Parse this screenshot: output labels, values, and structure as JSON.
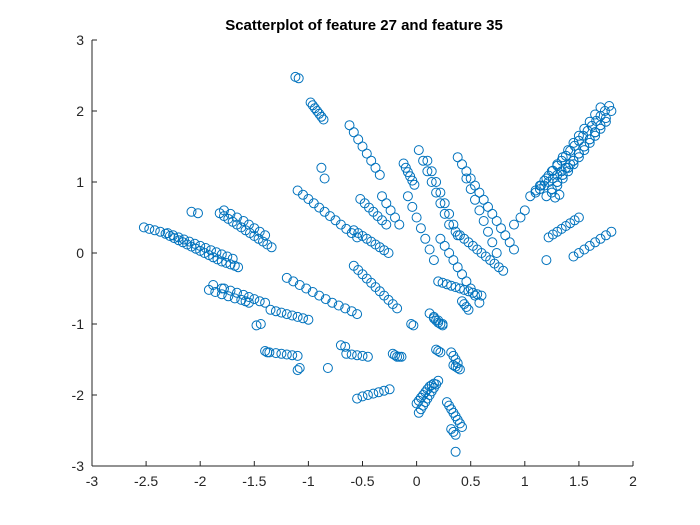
{
  "chart_data": {
    "type": "scatter",
    "title": "Scatterplot of feature 27 and feature 35",
    "xlabel": "",
    "ylabel": "",
    "xlim": [
      -3,
      2
    ],
    "ylim": [
      -3,
      3
    ],
    "xticks": [
      -3,
      -2.5,
      -2,
      -1.5,
      -1,
      -0.5,
      0,
      0.5,
      1,
      1.5,
      2
    ],
    "xtick_labels": [
      "-3",
      "-2.5",
      "-2",
      "-1.5",
      "-1",
      "-0.5",
      "0",
      "0.5",
      "1",
      "1.5",
      "2"
    ],
    "yticks": [
      -3,
      -2,
      -1,
      0,
      1,
      2,
      3
    ],
    "ytick_labels": [
      "-3",
      "-2",
      "-1",
      "0",
      "1",
      "2",
      "3"
    ],
    "grid": false,
    "legend": "none",
    "marker": "open-circle",
    "marker_color": "#0072BD",
    "series": [
      {
        "x": [
          -2.52,
          -2.47,
          -2.42,
          -2.37,
          -2.32,
          -2.28,
          -2.24,
          -2.2,
          -2.16,
          -2.12,
          -2.08,
          -2.04,
          -2.0,
          -1.96,
          -1.92,
          -1.88,
          -1.84,
          -1.8,
          -1.76,
          -1.72,
          -1.68,
          -1.65,
          -2.3,
          -2.25,
          -2.2,
          -2.15,
          -2.1,
          -2.05,
          -2.0,
          -1.95,
          -1.9,
          -1.85,
          -1.8,
          -1.75,
          -1.7,
          -1.82,
          -1.78,
          -1.74,
          -1.7,
          -1.66,
          -1.62,
          -1.58,
          -1.54,
          -1.5,
          -1.46,
          -1.42,
          -1.38,
          -1.34,
          -1.78,
          -1.72,
          -1.66,
          -1.6,
          -1.55,
          -1.5,
          -1.45,
          -1.4,
          -1.1,
          -1.05,
          -1.0,
          -0.95,
          -0.9,
          -0.85,
          -0.8,
          -0.75,
          -0.7,
          -0.65,
          -0.6,
          -0.55,
          -1.2,
          -1.14,
          -1.08,
          -1.02,
          -0.96,
          -0.9,
          -0.84,
          -0.78,
          -0.72,
          -0.66,
          -0.6,
          -0.55,
          -1.35,
          -1.3,
          -1.25,
          -1.2,
          -1.15,
          -1.1,
          -1.05,
          -1.0,
          -1.78,
          -1.72,
          -1.66,
          -1.6,
          -1.55,
          -1.5,
          -1.45,
          -1.4,
          -1.92,
          -1.86,
          -1.8,
          -1.74,
          -1.68,
          -1.62,
          -1.58,
          -1.55,
          -1.12,
          -1.09,
          -1.1,
          -1.08,
          -0.98,
          -0.96,
          -0.94,
          -0.92,
          -0.9,
          -0.88,
          -0.86,
          -0.62,
          -0.58,
          -0.54,
          -0.5,
          -0.46,
          -0.42,
          -0.38,
          -0.34,
          -0.58,
          -0.54,
          -0.5,
          -0.46,
          -0.42,
          -0.38,
          -0.34,
          -0.3,
          -0.26,
          -0.22,
          -0.18,
          -0.52,
          -0.48,
          -0.44,
          -0.4,
          -0.36,
          -0.32,
          -0.28,
          -0.58,
          -0.54,
          -0.5,
          -0.46,
          -0.42,
          -0.38,
          -0.34,
          -0.3,
          -0.26,
          -0.32,
          -0.28,
          -0.24,
          -0.2,
          -0.16,
          -0.65,
          -0.6,
          -0.55,
          -0.5,
          -0.45,
          -1.38,
          -1.3,
          -1.25,
          -1.2,
          -1.15,
          -1.1,
          -1.48,
          -1.44,
          -1.88,
          -1.8,
          -2.02,
          -2.08,
          -1.4,
          -1.36,
          -0.88,
          -0.85,
          -0.82,
          -0.7,
          -0.66,
          -0.55,
          -0.5,
          -0.45,
          -0.4,
          -0.35,
          -0.3,
          -0.25,
          -0.22,
          -0.2,
          -0.18,
          -0.16,
          -0.14,
          -0.12,
          -0.1,
          -0.08,
          -0.06,
          -0.04,
          -0.02,
          -0.05,
          -0.03,
          0.0,
          0.02,
          0.04,
          0.06,
          0.08,
          0.1,
          0.12,
          0.14,
          0.16,
          0.02,
          0.04,
          0.06,
          0.08,
          0.1,
          0.12,
          0.14,
          0.16,
          0.18,
          0.2,
          0.12,
          0.16,
          0.2,
          0.24,
          0.18,
          0.2,
          0.22,
          0.16,
          0.18,
          0.2,
          0.22,
          0.24,
          0.28,
          0.3,
          0.32,
          0.34,
          0.36,
          0.38,
          0.4,
          0.42,
          0.32,
          0.34,
          0.36,
          0.38,
          0.36,
          0.32,
          0.34,
          0.36,
          0.34,
          0.36,
          0.38,
          0.4,
          0.42,
          0.44,
          0.46,
          0.48,
          0.2,
          0.24,
          0.28,
          0.32,
          0.36,
          0.4,
          0.44,
          0.48,
          0.52,
          0.56,
          0.6,
          0.22,
          0.26,
          0.3,
          0.34,
          0.38,
          0.42,
          0.46,
          0.5,
          0.54,
          0.58,
          0.36,
          0.4,
          0.44,
          0.48,
          0.52,
          0.56,
          0.6,
          0.64,
          0.68,
          0.72,
          0.76,
          0.8,
          0.46,
          0.5,
          0.54,
          0.58,
          0.62,
          0.66,
          0.7,
          0.74,
          0.1,
          0.14,
          0.18,
          0.22,
          0.26,
          0.3,
          0.34,
          0.38,
          0.02,
          0.06,
          0.1,
          0.14,
          0.18,
          0.22,
          0.26,
          0.3,
          -0.08,
          -0.04,
          0.0,
          0.04,
          0.08,
          0.12,
          0.16,
          0.38,
          0.42,
          0.46,
          0.5,
          0.54,
          0.58,
          0.62,
          0.66,
          0.7,
          0.74,
          0.78,
          0.82,
          0.86,
          0.9,
          1.1,
          1.14,
          1.18,
          1.22,
          1.26,
          1.3,
          1.34,
          1.38,
          1.42,
          1.46,
          1.5,
          1.54,
          1.58,
          1.62,
          1.66,
          1.7,
          1.74,
          1.78,
          1.15,
          1.2,
          1.25,
          1.3,
          1.35,
          1.4,
          1.45,
          1.5,
          1.55,
          1.6,
          1.65,
          1.7,
          1.2,
          1.25,
          1.3,
          1.35,
          1.4,
          1.45,
          1.5,
          1.55,
          1.6,
          1.65,
          1.25,
          1.3,
          1.35,
          1.4,
          1.45,
          1.5,
          1.55,
          1.6,
          1.65,
          1.7,
          1.75,
          1.3,
          1.35,
          1.4,
          1.45,
          1.5,
          1.55,
          1.6,
          1.65,
          1.7,
          1.75,
          1.8,
          1.1,
          1.14,
          1.18,
          1.22,
          1.26,
          1.3,
          1.34,
          1.38,
          1.42,
          1.22,
          1.26,
          1.3,
          1.34,
          1.38,
          1.42,
          1.46,
          1.5,
          1.45,
          1.5,
          1.55,
          1.6,
          1.65,
          1.7,
          1.75,
          1.8,
          1.2,
          1.28,
          1.32,
          1.0,
          1.05,
          0.9,
          0.96
        ],
        "y": [
          0.36,
          0.34,
          0.32,
          0.3,
          0.27,
          0.24,
          0.21,
          0.18,
          0.15,
          0.12,
          0.09,
          0.06,
          0.03,
          0.0,
          -0.03,
          -0.06,
          -0.09,
          -0.12,
          -0.14,
          -0.16,
          -0.18,
          -0.2,
          0.28,
          0.25,
          0.22,
          0.19,
          0.16,
          0.13,
          0.1,
          0.07,
          0.04,
          0.01,
          -0.02,
          -0.05,
          -0.08,
          0.56,
          0.52,
          0.48,
          0.44,
          0.4,
          0.36,
          0.32,
          0.28,
          0.24,
          0.2,
          0.16,
          0.12,
          0.08,
          0.6,
          0.55,
          0.5,
          0.45,
          0.4,
          0.35,
          0.3,
          0.25,
          0.88,
          0.82,
          0.76,
          0.7,
          0.64,
          0.58,
          0.52,
          0.46,
          0.4,
          0.34,
          0.28,
          0.22,
          -0.35,
          -0.4,
          -0.45,
          -0.5,
          -0.55,
          -0.6,
          -0.65,
          -0.7,
          -0.74,
          -0.78,
          -0.82,
          -0.86,
          -0.8,
          -0.82,
          -0.84,
          -0.86,
          -0.88,
          -0.9,
          -0.92,
          -0.94,
          -0.5,
          -0.53,
          -0.56,
          -0.59,
          -0.62,
          -0.65,
          -0.68,
          -0.7,
          -0.52,
          -0.55,
          -0.58,
          -0.61,
          -0.64,
          -0.66,
          -0.68,
          -0.7,
          2.48,
          2.46,
          -1.65,
          -1.62,
          2.12,
          2.08,
          2.04,
          2.0,
          1.96,
          1.92,
          1.88,
          1.8,
          1.7,
          1.6,
          1.5,
          1.4,
          1.3,
          1.2,
          1.1,
          -0.18,
          -0.24,
          -0.3,
          -0.36,
          -0.42,
          -0.48,
          -0.54,
          -0.6,
          -0.66,
          -0.72,
          -0.78,
          0.76,
          0.7,
          0.64,
          0.58,
          0.52,
          0.46,
          0.4,
          0.32,
          0.28,
          0.24,
          0.2,
          0.16,
          0.12,
          0.08,
          0.04,
          0.0,
          0.8,
          0.7,
          0.6,
          0.5,
          0.4,
          -1.42,
          -1.43,
          -1.44,
          -1.45,
          -1.46,
          -1.4,
          -1.41,
          -1.42,
          -1.43,
          -1.44,
          -1.45,
          -1.02,
          -1.0,
          -0.45,
          -0.5,
          0.56,
          0.58,
          -1.38,
          -1.4,
          1.2,
          1.05,
          -1.62,
          -1.3,
          -1.32,
          -2.05,
          -2.02,
          -2.0,
          -1.98,
          -1.96,
          -1.94,
          -1.92,
          -1.42,
          -1.44,
          -1.46,
          -1.46,
          -1.46,
          1.26,
          1.2,
          1.14,
          1.08,
          1.02,
          0.96,
          -1.0,
          -1.02,
          -2.12,
          -2.08,
          -2.04,
          -2.0,
          -1.96,
          -1.92,
          -1.88,
          -1.86,
          -1.84,
          -2.25,
          -2.2,
          -2.15,
          -2.1,
          -2.05,
          -2.0,
          -1.95,
          -1.9,
          -1.85,
          -1.8,
          -0.85,
          -0.9,
          -0.95,
          -1.0,
          -1.36,
          -1.38,
          -1.4,
          -0.92,
          -0.95,
          -0.98,
          -1.0,
          -1.02,
          -2.1,
          -2.15,
          -2.2,
          -2.25,
          -2.3,
          -2.35,
          -2.4,
          -2.45,
          -1.4,
          -1.45,
          -1.5,
          -1.55,
          -2.8,
          -2.48,
          -2.52,
          -2.56,
          -1.58,
          -1.6,
          -1.62,
          -1.64,
          -0.68,
          -0.72,
          -0.76,
          -0.8,
          -0.4,
          -0.42,
          -0.44,
          -0.46,
          -0.48,
          -0.5,
          -0.52,
          -0.54,
          -0.56,
          -0.58,
          -0.6,
          0.2,
          0.1,
          0.0,
          -0.1,
          -0.2,
          -0.3,
          -0.4,
          -0.5,
          -0.6,
          -0.7,
          0.3,
          0.25,
          0.2,
          0.15,
          0.1,
          0.05,
          0.0,
          -0.05,
          -0.1,
          -0.15,
          -0.2,
          -0.25,
          1.05,
          0.9,
          0.75,
          0.6,
          0.45,
          0.3,
          0.15,
          0.0,
          1.3,
          1.15,
          1.0,
          0.85,
          0.7,
          0.55,
          0.4,
          0.25,
          1.45,
          1.3,
          1.15,
          1.0,
          0.85,
          0.7,
          0.55,
          0.4,
          0.8,
          0.65,
          0.5,
          0.35,
          0.2,
          0.05,
          -0.1,
          1.35,
          1.25,
          1.15,
          1.05,
          0.95,
          0.85,
          0.75,
          0.65,
          0.55,
          0.45,
          0.35,
          0.25,
          0.15,
          0.05,
          0.88,
          0.95,
          1.02,
          1.09,
          1.16,
          1.23,
          1.3,
          1.37,
          1.44,
          1.51,
          1.58,
          1.65,
          1.72,
          1.79,
          1.86,
          1.93,
          2.0,
          2.07,
          0.95,
          1.05,
          1.15,
          1.25,
          1.35,
          1.45,
          1.55,
          1.65,
          1.75,
          1.85,
          1.95,
          2.05,
          0.8,
          0.9,
          1.0,
          1.1,
          1.2,
          1.3,
          1.4,
          1.5,
          1.6,
          1.7,
          0.85,
          0.95,
          1.05,
          1.15,
          1.25,
          1.35,
          1.45,
          1.55,
          1.65,
          1.75,
          1.85,
          1.0,
          1.1,
          1.2,
          1.3,
          1.4,
          1.5,
          1.6,
          1.7,
          1.8,
          1.9,
          2.0,
          0.85,
          0.9,
          0.95,
          1.0,
          1.05,
          1.1,
          1.15,
          1.2,
          1.25,
          0.22,
          0.26,
          0.3,
          0.34,
          0.38,
          0.42,
          0.46,
          0.5,
          -0.05,
          0.0,
          0.05,
          0.1,
          0.15,
          0.2,
          0.25,
          0.3,
          -0.1,
          0.78,
          0.82,
          0.6,
          0.8,
          0.4,
          0.5
        ]
      }
    ]
  }
}
